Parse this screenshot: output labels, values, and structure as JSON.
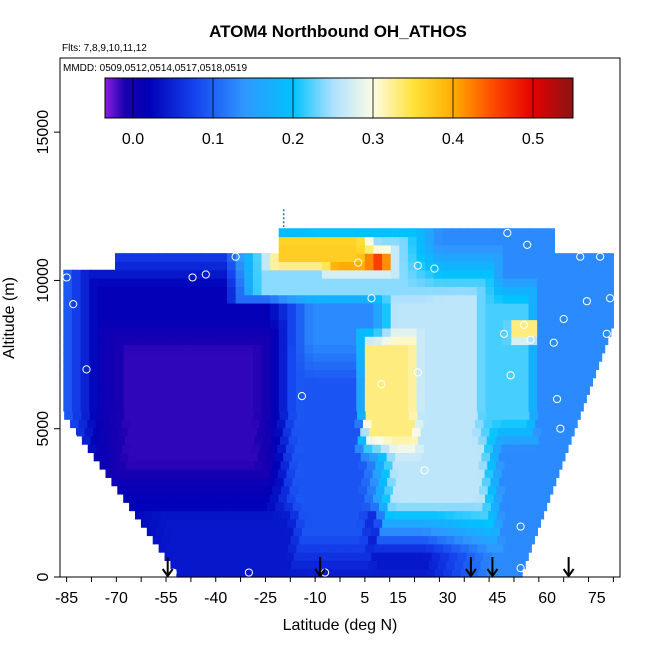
{
  "chart_data": {
    "type": "heatmap",
    "title": "ATOM4 Northbound OH_ATHOS",
    "subtitle_flights": "Flts: 7,8,9,10,11,12",
    "subtitle_dates": "MMDD: 0509,0512,0514,0517,0518,0519",
    "xlabel": "Latitude (deg N)",
    "ylabel": "Altitude (m)",
    "xlim": [
      -87,
      82
    ],
    "ylim": [
      0,
      17500
    ],
    "x_ticks": [
      -85,
      -70,
      -55,
      -40,
      -25,
      -10,
      5,
      15,
      30,
      45,
      60,
      75
    ],
    "y_ticks": [
      0,
      5000,
      10000,
      15000
    ],
    "colorbar": {
      "min": -0.035,
      "max": 0.55,
      "ticks": [
        0.0,
        0.1,
        0.2,
        0.3,
        0.4,
        0.5
      ],
      "tick_labels": [
        "0.0",
        "0.1",
        "0.2",
        "0.3",
        "0.4",
        "0.5"
      ],
      "stops": [
        {
          "v": -0.035,
          "c": "#8a1de0"
        },
        {
          "v": -0.01,
          "c": "#1a00b0"
        },
        {
          "v": 0.02,
          "c": "#0000b8"
        },
        {
          "v": 0.08,
          "c": "#1646f0"
        },
        {
          "v": 0.14,
          "c": "#2f98ff"
        },
        {
          "v": 0.2,
          "c": "#00c2ff"
        },
        {
          "v": 0.25,
          "c": "#aee0ff"
        },
        {
          "v": 0.3,
          "c": "#fcfce6"
        },
        {
          "v": 0.35,
          "c": "#ffe23a"
        },
        {
          "v": 0.4,
          "c": "#ffae00"
        },
        {
          "v": 0.45,
          "c": "#ff4a00"
        },
        {
          "v": 0.5,
          "c": "#e50000"
        },
        {
          "v": 0.55,
          "c": "#8b1414"
        }
      ]
    },
    "grid": false,
    "field_description_units": "OH mixing ratio (pptv, colorbar scale)",
    "sample_points": [
      {
        "lat": -85,
        "alt": 10100
      },
      {
        "lat": -81,
        "alt": 10500
      },
      {
        "lat": -83,
        "alt": 9200
      },
      {
        "lat": -79,
        "alt": 7000
      },
      {
        "lat": -83,
        "alt": 4700
      },
      {
        "lat": -47,
        "alt": 10100
      },
      {
        "lat": -43,
        "alt": 10200
      },
      {
        "lat": -34,
        "alt": 10800
      },
      {
        "lat": -26,
        "alt": 11100
      },
      {
        "lat": -14,
        "alt": 6100
      },
      {
        "lat": 3,
        "alt": 10600
      },
      {
        "lat": 7,
        "alt": 9400
      },
      {
        "lat": 21,
        "alt": 10500
      },
      {
        "lat": 23,
        "alt": 3600
      },
      {
        "lat": 21,
        "alt": 6900
      },
      {
        "lat": 10,
        "alt": 6500
      },
      {
        "lat": 26,
        "alt": 10400
      },
      {
        "lat": 48,
        "alt": 11600
      },
      {
        "lat": 54,
        "alt": 11200
      },
      {
        "lat": 70,
        "alt": 10800
      },
      {
        "lat": 76,
        "alt": 10800
      },
      {
        "lat": 72,
        "alt": 9300
      },
      {
        "lat": 79,
        "alt": 9400
      },
      {
        "lat": 78,
        "alt": 8200
      },
      {
        "lat": 65,
        "alt": 8700
      },
      {
        "lat": 53,
        "alt": 8500
      },
      {
        "lat": 55,
        "alt": 8000
      },
      {
        "lat": 62,
        "alt": 7900
      },
      {
        "lat": 47,
        "alt": 8200
      },
      {
        "lat": 49,
        "alt": 6800
      },
      {
        "lat": 63,
        "alt": 6000
      },
      {
        "lat": 64,
        "alt": 5000
      },
      {
        "lat": 52,
        "alt": 1700
      },
      {
        "lat": 52,
        "alt": 300
      },
      {
        "lat": -53,
        "alt": 150
      },
      {
        "lat": -30,
        "alt": 150
      },
      {
        "lat": -7,
        "alt": 150
      }
    ],
    "arrows_lat": [
      -54.5,
      -8.5,
      37,
      43.5,
      66.5
    ],
    "regions": [
      {
        "desc": "background upper tropo",
        "lat": [
          -89,
          84
        ],
        "alt": [
          0,
          12000
        ],
        "value": 0.13
      },
      {
        "desc": "SH deep blue",
        "lat": [
          -80,
          -20
        ],
        "alt": [
          0,
          10500
        ],
        "value": 0.015
      },
      {
        "desc": "SH purple core",
        "lat": [
          -70,
          -25
        ],
        "alt": [
          3500,
          8000
        ],
        "value": -0.015
      },
      {
        "desc": "low level band",
        "lat": [
          -60,
          30
        ],
        "alt": [
          0,
          2200
        ],
        "value": 0.04
      },
      {
        "desc": "tropical lower blue",
        "lat": [
          -15,
          5
        ],
        "alt": [
          1000,
          7000
        ],
        "value": 0.09
      },
      {
        "desc": "NH pale column",
        "lat": [
          12,
          42
        ],
        "alt": [
          2000,
          10000
        ],
        "value": 0.26
      },
      {
        "desc": "NH mid light",
        "lat": [
          40,
          55
        ],
        "alt": [
          5000,
          9500
        ],
        "value": 0.22
      },
      {
        "desc": "upper tropical bright",
        "lat": [
          -30,
          20
        ],
        "alt": [
          9500,
          11600
        ],
        "value": 0.24
      },
      {
        "desc": "upper red core",
        "lat": [
          -5,
          12
        ],
        "alt": [
          10300,
          11000
        ],
        "value": 0.46
      },
      {
        "desc": "upper yellow",
        "lat": [
          -22,
          5
        ],
        "alt": [
          10500,
          11400
        ],
        "value": 0.37
      },
      {
        "desc": "tropical diagonal yellow",
        "lat": [
          5,
          20
        ],
        "alt": [
          4500,
          8000
        ],
        "value": 0.33
      },
      {
        "desc": "NH upper yellow patch",
        "lat": [
          49,
          57
        ],
        "alt": [
          8000,
          8600
        ],
        "value": 0.33
      }
    ]
  }
}
